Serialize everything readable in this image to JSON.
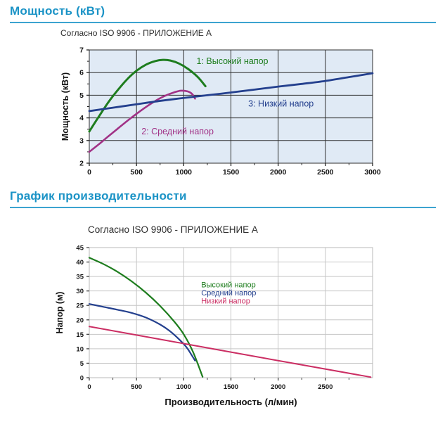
{
  "sections": {
    "power": {
      "heading": "Мощность (кВт)"
    },
    "performance": {
      "heading": "График производительности"
    }
  },
  "colors": {
    "heading_blue": "#1b93c6",
    "rule_blue": "#3ba3d0",
    "high_head_green": "#1e7d1e",
    "medium_head_purple": "#a13286",
    "low_head_navy": "#24408e",
    "low_head_pink": "#cb2e63"
  },
  "chart_data": [
    {
      "type": "line",
      "title": "Согласно ISO 9906 - ПРИЛОЖЕНИЕ А",
      "xlabel": "",
      "ylabel": "Мощность (кВт)",
      "xlim": [
        0,
        3000
      ],
      "ylim": [
        2,
        7
      ],
      "xticks": [
        0,
        500,
        1000,
        1500,
        2000,
        2500,
        3000
      ],
      "yticks": [
        2,
        3,
        4,
        5,
        6,
        7
      ],
      "x_minor_step": 250,
      "y_minor_step": 0.5,
      "grid": true,
      "plot_bg": "#e0eaf5",
      "grid_color": "#2e2e2e",
      "border_color": "#2e2e2e",
      "tick_color": "#222222",
      "tick_size": 10.5,
      "legend_position": "curve-labels-in-plot",
      "series": [
        {
          "name": "1: Высокий напор",
          "color": "#1e7d1e",
          "width": 3,
          "x": [
            0,
            100,
            200,
            300,
            400,
            500,
            600,
            700,
            780,
            860,
            950,
            1050,
            1150,
            1230
          ],
          "y": [
            3.4,
            4.05,
            4.68,
            5.22,
            5.7,
            6.08,
            6.35,
            6.51,
            6.56,
            6.53,
            6.4,
            6.15,
            5.8,
            5.4
          ]
        },
        {
          "name": "2: Средний напор",
          "color": "#a13286",
          "width": 2.6,
          "x": [
            0,
            100,
            200,
            300,
            400,
            500,
            600,
            700,
            800,
            900,
            970,
            1040,
            1090,
            1120
          ],
          "y": [
            2.5,
            2.83,
            3.18,
            3.52,
            3.86,
            4.18,
            4.48,
            4.75,
            4.97,
            5.13,
            5.2,
            5.17,
            5.05,
            4.85
          ]
        },
        {
          "name": "3: Низкий напор",
          "color": "#24408e",
          "width": 2.8,
          "x": [
            0,
            250,
            500,
            750,
            1000,
            1250,
            1500,
            1750,
            2000,
            2250,
            2500,
            2750,
            3000
          ],
          "y": [
            4.3,
            4.45,
            4.6,
            4.75,
            4.88,
            5.0,
            5.12,
            5.25,
            5.38,
            5.5,
            5.63,
            5.8,
            5.97
          ]
        }
      ],
      "annotations": [
        {
          "text": "1: Высокий напор",
          "color": "#1e7d1e",
          "x": 1515,
          "y": 6.5,
          "size": 12.5,
          "anchor": "middle"
        },
        {
          "text": "2: Средний напор",
          "color": "#a13286",
          "x": 935,
          "y": 3.4,
          "size": 12.5,
          "anchor": "middle"
        },
        {
          "text": "3: Низкий напор",
          "color": "#24408e",
          "x": 2030,
          "y": 4.62,
          "size": 12.5,
          "anchor": "middle"
        }
      ]
    },
    {
      "type": "line",
      "title": "Согласно ISO 9906 - ПРИЛОЖЕНИЕ А",
      "xlabel": "Производительность (л/мин)",
      "ylabel": "Напор (м)",
      "xlim": [
        0,
        3000
      ],
      "ylim": [
        0,
        45
      ],
      "xticks": [
        0,
        500,
        1000,
        1500,
        2000,
        2500
      ],
      "yticks": [
        0,
        5,
        10,
        15,
        20,
        25,
        30,
        35,
        40,
        45
      ],
      "x_minor_step": 250,
      "grid": true,
      "plot_bg": "#ffffff",
      "grid_color": "#c6c6c6",
      "border_color": "#b8b8b8",
      "tick_color": "#444444",
      "tick_size": 9.5,
      "legend_position": "in-plot-right",
      "series": [
        {
          "name": "Высокий напор",
          "color": "#1e7d1e",
          "width": 2.2,
          "x": [
            0,
            150,
            300,
            450,
            600,
            750,
            900,
            1000,
            1100,
            1200
          ],
          "y": [
            41.5,
            39.3,
            36.6,
            33.3,
            29.4,
            24.8,
            19.4,
            15,
            8.8,
            0.3
          ]
        },
        {
          "name": "Средний напор",
          "color": "#24408e",
          "width": 2.2,
          "x": [
            0,
            150,
            300,
            450,
            600,
            750,
            850,
            950,
            1030,
            1090,
            1120
          ],
          "y": [
            25.5,
            24.5,
            23.5,
            22.4,
            20.8,
            18.4,
            16.2,
            13.3,
            10.5,
            7.5,
            5.9
          ]
        },
        {
          "name": "Низкий напор",
          "color": "#cb2e63",
          "width": 2,
          "x": [
            0,
            1000,
            2000,
            2980
          ],
          "y": [
            17.7,
            11.8,
            5.9,
            0.2
          ]
        }
      ],
      "annotations": [
        {
          "text": "Высокий напор",
          "color": "#1e7d1e",
          "x": 1185,
          "y": 32.2,
          "size": 11,
          "anchor": "start"
        },
        {
          "text": "Средний напор",
          "color": "#24408e",
          "x": 1185,
          "y": 29.4,
          "size": 11,
          "anchor": "start"
        },
        {
          "text": "Низкий напор",
          "color": "#cb2e63",
          "x": 1185,
          "y": 26.6,
          "size": 11,
          "anchor": "start"
        }
      ]
    }
  ]
}
